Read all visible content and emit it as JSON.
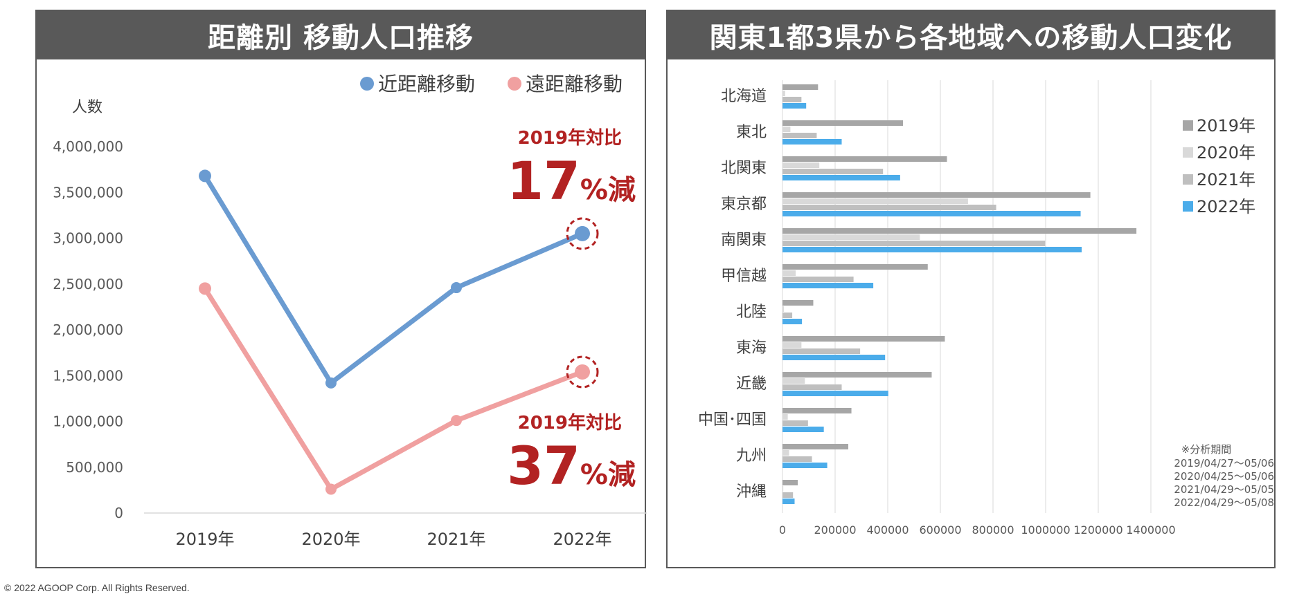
{
  "footer": {
    "copyright": "© 2022 AGOOP Corp. All Rights Reserved."
  },
  "left": {
    "title": "距離別 移動人口推移",
    "annotations": [
      {
        "label": "2019年対比",
        "value": "17",
        "unit": "%減",
        "color": "#b22222"
      },
      {
        "label": "2019年対比",
        "value": "37",
        "unit": "%減",
        "color": "#b22222"
      }
    ]
  },
  "right": {
    "title": "関東1都3県から各地域への移動人口変化",
    "note": {
      "heading": "※分析期間",
      "lines": [
        "2019/04/27～05/06",
        "2020/04/25～05/06",
        "2021/04/29～05/05",
        "2022/04/29～05/08"
      ]
    }
  },
  "chart_data": [
    {
      "type": "line",
      "title": "距離別 移動人口推移",
      "ylabel": "人数",
      "xlabel": "",
      "categories": [
        "2019年",
        "2020年",
        "2021年",
        "2022年"
      ],
      "ylim": [
        0,
        4000000
      ],
      "yticks": [
        0,
        500000,
        1000000,
        1500000,
        2000000,
        2500000,
        3000000,
        3500000,
        4000000
      ],
      "ytick_labels": [
        "0",
        "500,000",
        "1,000,000",
        "1,500,000",
        "2,000,000",
        "2,500,000",
        "3,000,000",
        "3,500,000",
        "4,000,000"
      ],
      "grid": false,
      "legend_position": "top-right",
      "series": [
        {
          "name": "近距離移動",
          "color": "#6a9bd1",
          "values": [
            3680000,
            1420000,
            2460000,
            3050000
          ]
        },
        {
          "name": "遠距離移動",
          "color": "#f0a0a0",
          "values": [
            2450000,
            260000,
            1010000,
            1540000
          ]
        }
      ],
      "highlight_category": "2022年"
    },
    {
      "type": "bar",
      "orientation": "horizontal",
      "title": "関東1都3県から各地域への移動人口変化",
      "categories": [
        "北海道",
        "東北",
        "北関東",
        "東京都",
        "南関東",
        "甲信越",
        "北陸",
        "東海",
        "近畿",
        "中国･四国",
        "九州",
        "沖縄"
      ],
      "xlim": [
        0,
        1400000
      ],
      "xticks": [
        0,
        200000,
        400000,
        600000,
        800000,
        1000000,
        1200000,
        1400000
      ],
      "xtick_labels": [
        "0",
        "200000",
        "400000",
        "600000",
        "800000",
        "1000000",
        "1200000",
        "1400000"
      ],
      "grid": true,
      "legend_position": "right",
      "series": [
        {
          "name": "2019年",
          "color": "#a6a6a6",
          "values": [
            135000,
            458000,
            625000,
            1170000,
            1345000,
            552000,
            117000,
            617000,
            567000,
            262000,
            250000,
            58000
          ]
        },
        {
          "name": "2020年",
          "color": "#d9d9d9",
          "values": [
            10000,
            30000,
            140000,
            705000,
            522000,
            50000,
            5000,
            72000,
            85000,
            20000,
            25000,
            3000
          ]
        },
        {
          "name": "2021年",
          "color": "#bfbfbf",
          "values": [
            72000,
            130000,
            382000,
            812000,
            998000,
            270000,
            37000,
            295000,
            225000,
            97000,
            112000,
            40000
          ]
        },
        {
          "name": "2022年",
          "color": "#4bacea",
          "values": [
            90000,
            225000,
            447000,
            1133000,
            1137000,
            345000,
            74000,
            390000,
            402000,
            157000,
            170000,
            46000
          ]
        }
      ]
    }
  ]
}
